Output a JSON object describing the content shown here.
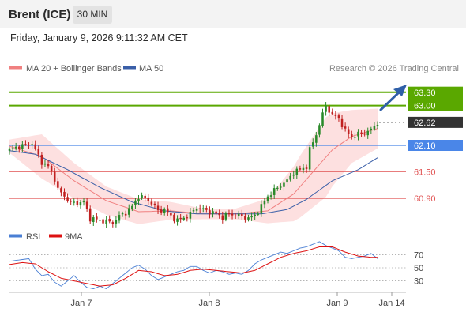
{
  "header": {
    "title": "Brent (ICE)",
    "timeframe": "30 MIN"
  },
  "timestamp": "Friday, January 9, 2026 9:11:32 AM CET",
  "legend": {
    "ma20": "MA 20 + Bollinger Bands",
    "ma50": "MA 50",
    "credit": "Research © 2026 Trading Central"
  },
  "colors": {
    "up": "#2a8a2a",
    "down": "#c02020",
    "bollinger": "#fde0e0",
    "ma20": "#f08080",
    "ma50": "#3a5fa8",
    "resistance": "#5aa800",
    "pivot": "#4a86e8",
    "support": "#e05050",
    "price_tag": "#333333",
    "rsi": "#4a7fd4",
    "rsi_ma": "#dd1111",
    "arrow": "#2f5fa8"
  },
  "chart_data": [
    {
      "type": "candlestick",
      "ylim": [
        60.35,
        63.6
      ],
      "levels": [
        {
          "label": "63.30",
          "value": 63.3,
          "kind": "resistance"
        },
        {
          "label": "63.00",
          "value": 63.0,
          "kind": "resistance"
        },
        {
          "label": "62.62",
          "value": 62.62,
          "kind": "price"
        },
        {
          "label": "62.10",
          "value": 62.1,
          "kind": "pivot"
        },
        {
          "label": "61.50",
          "value": 61.5,
          "kind": "support"
        },
        {
          "label": "60.90",
          "value": 60.9,
          "kind": "support"
        }
      ],
      "x_ticks": [
        "Jan 7",
        "Jan 8",
        "Jan 9",
        "Jan 14"
      ],
      "candle_anchors": [
        [
          0,
          62.0
        ],
        [
          3,
          62.08
        ],
        [
          5,
          62.1
        ],
        [
          7,
          62.15
        ],
        [
          8,
          62.0
        ],
        [
          10,
          61.72
        ],
        [
          12,
          61.62
        ],
        [
          14,
          61.35
        ],
        [
          15,
          61.1
        ],
        [
          17,
          60.95
        ],
        [
          19,
          60.8
        ],
        [
          21,
          60.8
        ],
        [
          23,
          60.82
        ],
        [
          25,
          60.45
        ],
        [
          27,
          60.42
        ],
        [
          30,
          60.38
        ],
        [
          32,
          60.35
        ],
        [
          34,
          60.5
        ],
        [
          36,
          60.58
        ],
        [
          38,
          60.72
        ],
        [
          40,
          60.95
        ],
        [
          42,
          60.9
        ],
        [
          44,
          60.8
        ],
        [
          46,
          60.62
        ],
        [
          48,
          60.65
        ],
        [
          50,
          60.5
        ],
        [
          52,
          60.4
        ],
        [
          54,
          60.46
        ],
        [
          56,
          60.55
        ],
        [
          58,
          60.7
        ],
        [
          60,
          60.65
        ],
        [
          62,
          60.6
        ],
        [
          64,
          60.55
        ],
        [
          66,
          60.48
        ],
        [
          68,
          60.55
        ],
        [
          70,
          60.52
        ],
        [
          72,
          60.5
        ],
        [
          74,
          60.45
        ],
        [
          76,
          60.52
        ],
        [
          78,
          60.72
        ],
        [
          80,
          60.95
        ],
        [
          82,
          61.08
        ],
        [
          84,
          61.2
        ],
        [
          86,
          61.3
        ],
        [
          88,
          61.5
        ],
        [
          90,
          61.55
        ],
        [
          92,
          61.62
        ],
        [
          93,
          62.0
        ],
        [
          95,
          62.35
        ],
        [
          97,
          62.8
        ],
        [
          98,
          63.0
        ],
        [
          100,
          62.78
        ],
        [
          102,
          62.72
        ],
        [
          104,
          62.42
        ],
        [
          106,
          62.3
        ],
        [
          108,
          62.35
        ],
        [
          110,
          62.38
        ],
        [
          112,
          62.45
        ],
        [
          114,
          62.62
        ]
      ],
      "ma20_anchors": [
        [
          0,
          62.08
        ],
        [
          10,
          61.85
        ],
        [
          20,
          61.3
        ],
        [
          30,
          60.85
        ],
        [
          40,
          60.6
        ],
        [
          50,
          60.62
        ],
        [
          60,
          60.55
        ],
        [
          70,
          60.55
        ],
        [
          80,
          60.62
        ],
        [
          88,
          61.0
        ],
        [
          94,
          61.5
        ],
        [
          100,
          62.0
        ],
        [
          106,
          62.3
        ],
        [
          114,
          62.48
        ]
      ],
      "ma50_anchors": [
        [
          0,
          61.98
        ],
        [
          8,
          61.9
        ],
        [
          18,
          61.55
        ],
        [
          28,
          61.15
        ],
        [
          38,
          60.82
        ],
        [
          48,
          60.62
        ],
        [
          58,
          60.55
        ],
        [
          68,
          60.55
        ],
        [
          78,
          60.55
        ],
        [
          86,
          60.65
        ],
        [
          92,
          60.88
        ],
        [
          100,
          61.3
        ],
        [
          108,
          61.55
        ],
        [
          114,
          61.82
        ]
      ],
      "band_width_anchors": [
        [
          0,
          0.15
        ],
        [
          10,
          0.5
        ],
        [
          20,
          0.4
        ],
        [
          30,
          0.32
        ],
        [
          40,
          0.28
        ],
        [
          50,
          0.2
        ],
        [
          60,
          0.12
        ],
        [
          70,
          0.12
        ],
        [
          80,
          0.28
        ],
        [
          90,
          0.7
        ],
        [
          98,
          0.9
        ],
        [
          106,
          0.6
        ],
        [
          114,
          0.45
        ]
      ]
    },
    {
      "type": "line",
      "ylim": [
        15,
        85
      ],
      "y_ticks": [
        70,
        50,
        30
      ],
      "series": [
        {
          "name": "RSI",
          "anchors": [
            [
              0,
              60
            ],
            [
              3,
              62
            ],
            [
              6,
              64
            ],
            [
              8,
              48
            ],
            [
              10,
              38
            ],
            [
              12,
              40
            ],
            [
              14,
              28
            ],
            [
              16,
              22
            ],
            [
              18,
              30
            ],
            [
              20,
              38
            ],
            [
              22,
              28
            ],
            [
              24,
              20
            ],
            [
              26,
              18
            ],
            [
              28,
              22
            ],
            [
              30,
              18
            ],
            [
              32,
              26
            ],
            [
              34,
              34
            ],
            [
              36,
              42
            ],
            [
              38,
              50
            ],
            [
              40,
              54
            ],
            [
              42,
              48
            ],
            [
              44,
              38
            ],
            [
              46,
              32
            ],
            [
              48,
              36
            ],
            [
              50,
              40
            ],
            [
              52,
              44
            ],
            [
              54,
              46
            ],
            [
              56,
              52
            ],
            [
              58,
              52
            ],
            [
              60,
              46
            ],
            [
              62,
              42
            ],
            [
              64,
              46
            ],
            [
              66,
              44
            ],
            [
              68,
              40
            ],
            [
              70,
              42
            ],
            [
              72,
              40
            ],
            [
              74,
              46
            ],
            [
              76,
              56
            ],
            [
              78,
              62
            ],
            [
              80,
              66
            ],
            [
              82,
              70
            ],
            [
              84,
              74
            ],
            [
              86,
              72
            ],
            [
              88,
              76
            ],
            [
              90,
              80
            ],
            [
              92,
              82
            ],
            [
              94,
              86
            ],
            [
              96,
              90
            ],
            [
              98,
              84
            ],
            [
              100,
              80
            ],
            [
              102,
              76
            ],
            [
              104,
              66
            ],
            [
              106,
              64
            ],
            [
              108,
              66
            ],
            [
              110,
              68
            ],
            [
              112,
              72
            ],
            [
              114,
              64
            ]
          ]
        },
        {
          "name": "9MA",
          "anchors": [
            [
              0,
              55
            ],
            [
              4,
              58
            ],
            [
              8,
              56
            ],
            [
              12,
              44
            ],
            [
              16,
              34
            ],
            [
              20,
              30
            ],
            [
              24,
              26
            ],
            [
              28,
              22
            ],
            [
              32,
              24
            ],
            [
              36,
              34
            ],
            [
              40,
              46
            ],
            [
              44,
              44
            ],
            [
              48,
              38
            ],
            [
              52,
              40
            ],
            [
              56,
              46
            ],
            [
              60,
              48
            ],
            [
              64,
              46
            ],
            [
              68,
              44
            ],
            [
              72,
              42
            ],
            [
              76,
              46
            ],
            [
              80,
              56
            ],
            [
              84,
              66
            ],
            [
              88,
              72
            ],
            [
              92,
              76
            ],
            [
              96,
              82
            ],
            [
              100,
              82
            ],
            [
              104,
              74
            ],
            [
              108,
              68
            ],
            [
              112,
              66
            ],
            [
              114,
              66
            ]
          ]
        }
      ]
    }
  ]
}
